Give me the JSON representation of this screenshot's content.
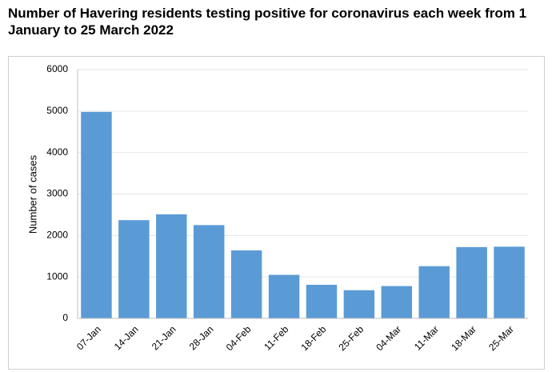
{
  "chart_data": {
    "type": "bar",
    "title": "Number of Havering residents testing positive for coronavirus each week from 1 January to 25 March 2022",
    "y_label": "Number of cases",
    "categories": [
      "07-Jan",
      "14-Jan",
      "21-Jan",
      "28-Jan",
      "04-Feb",
      "11-Feb",
      "18-Feb",
      "25-Feb",
      "04-Mar",
      "11-Mar",
      "18-Mar",
      "25-Mar"
    ],
    "values": [
      4980,
      2370,
      2510,
      2250,
      1640,
      1050,
      810,
      680,
      780,
      1260,
      1720,
      1730
    ],
    "color": "#5b9bd5",
    "ylim": [
      0,
      6000
    ],
    "yticks": [
      0,
      1000,
      2000,
      3000,
      4000,
      5000,
      6000
    ],
    "grid": true
  }
}
